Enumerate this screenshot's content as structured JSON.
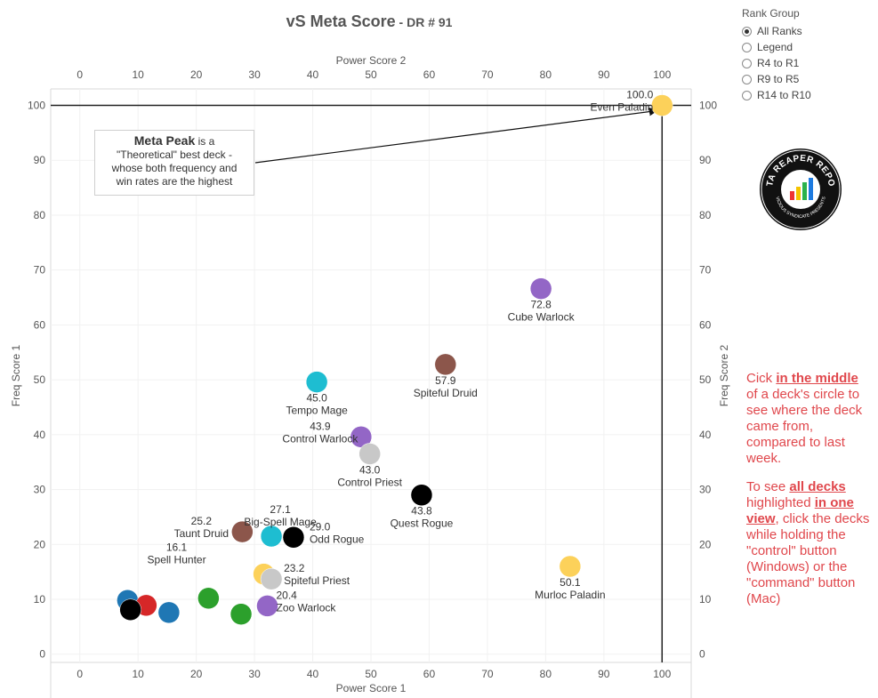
{
  "page": {
    "title": "vS Meta Score",
    "title_sep": " - ",
    "subtitle": "DR # 91"
  },
  "rank_group": {
    "label": "Rank Group",
    "options": [
      "All Ranks",
      "Legend",
      "R4 to R1",
      "R9 to R5",
      "R14 to R10"
    ],
    "selected": "All Ranks"
  },
  "logo": {
    "text_top": "DATA REAPER REPORT",
    "text_bottom": "VICIOUS SYNDICATE PRESENTS"
  },
  "callout": {
    "bold": "Meta Peak",
    "line1": " is a",
    "line2": "\"Theoretical\" best deck -",
    "line3": "whose both frequency and",
    "line4": "win rates are the highest"
  },
  "note": {
    "p1_a": "Cick ",
    "p1_b": "in the middle",
    "p1_c": " of a deck's circle to see where the deck came from, compared to last week.",
    "p2_a": "To see ",
    "p2_b": "all decks",
    "p2_c": " highlighted ",
    "p2_d": "in one view",
    "p2_e": ", click the decks while holding the \"control\" button (Windows) or the \"command\" button (Mac)"
  },
  "chart_data": {
    "type": "scatter",
    "title": "vS Meta Score - DR # 91",
    "xlabel": "Power Score 1",
    "x2label": "Power Score 2",
    "ylabel": "Freq Score 1",
    "y2label": "Freq Score 2",
    "xlim": [
      -5,
      105
    ],
    "ylim": [
      -1.5,
      103
    ],
    "xticks": [
      0,
      10,
      20,
      30,
      40,
      50,
      60,
      70,
      80,
      90,
      100
    ],
    "yticks": [
      0,
      10,
      20,
      30,
      40,
      50,
      60,
      70,
      80,
      90,
      100
    ],
    "grid": true,
    "reference_lines": {
      "x": 100,
      "y": 100
    },
    "points": [
      {
        "name": "Even Paladin",
        "score": "100.0",
        "x": 100,
        "y": 100,
        "color": "#fcd15a",
        "label": true
      },
      {
        "name": "Cube Warlock",
        "score": "72.8",
        "x": 79.2,
        "y": 66.6,
        "color": "#9366c6",
        "label": true
      },
      {
        "name": "Spiteful Druid",
        "score": "57.9",
        "x": 62.8,
        "y": 52.8,
        "color": "#8c564b",
        "label": true
      },
      {
        "name": "Tempo Mage",
        "score": "45.0",
        "x": 40.7,
        "y": 49.6,
        "color": "#1ebdd1",
        "label": true
      },
      {
        "name": "Control Warlock",
        "score": "43.9",
        "x": 48.3,
        "y": 39.6,
        "color": "#9366c6",
        "label": true
      },
      {
        "name": "Control Priest",
        "score": "43.0",
        "x": 49.8,
        "y": 36.5,
        "color": "#c8c8c8",
        "label": true
      },
      {
        "name": "Quest Rogue",
        "score": "43.8",
        "x": 58.7,
        "y": 29.0,
        "color": "#000000",
        "label": true
      },
      {
        "name": "Taunt Druid",
        "score": "25.2",
        "x": 27.9,
        "y": 22.3,
        "color": "#8c564b",
        "label": true
      },
      {
        "name": "Big-Spell Mage",
        "score": "27.1",
        "x": 32.9,
        "y": 21.5,
        "color": "#1ebdd1",
        "label": true
      },
      {
        "name": "Odd Rogue",
        "score": "29.0",
        "x": 36.7,
        "y": 21.3,
        "color": "#000000",
        "label": true
      },
      {
        "name": "Murloc Paladin",
        "score": "50.1",
        "x": 84.2,
        "y": 16.0,
        "color": "#fcd15a",
        "label": true
      },
      {
        "name": "Spell Hunter",
        "score": "16.1",
        "x": 31.6,
        "y": 14.6,
        "color": "#fcd15a",
        "label": true
      },
      {
        "name": "Spiteful Priest",
        "score": "23.2",
        "x": 32.9,
        "y": 13.7,
        "color": "#c8c8c8",
        "label": true
      },
      {
        "name": "Zoo Warlock",
        "score": "20.4",
        "x": 32.2,
        "y": 8.8,
        "color": "#9366c6",
        "label": true
      },
      {
        "name": "",
        "score": "",
        "x": 22.1,
        "y": 10.2,
        "color": "#2ca02c",
        "label": false
      },
      {
        "name": "",
        "score": "",
        "x": 27.7,
        "y": 7.3,
        "color": "#2ca02c",
        "label": false
      },
      {
        "name": "",
        "score": "",
        "x": 8.2,
        "y": 9.8,
        "color": "#1f77b4",
        "label": false
      },
      {
        "name": "",
        "score": "",
        "x": 11.4,
        "y": 8.9,
        "color": "#d62728",
        "label": false
      },
      {
        "name": "",
        "score": "",
        "x": 15.3,
        "y": 7.6,
        "color": "#1f77b4",
        "label": false
      },
      {
        "name": "",
        "score": "",
        "x": 8.7,
        "y": 8.1,
        "color": "#000000",
        "label": false
      }
    ]
  }
}
